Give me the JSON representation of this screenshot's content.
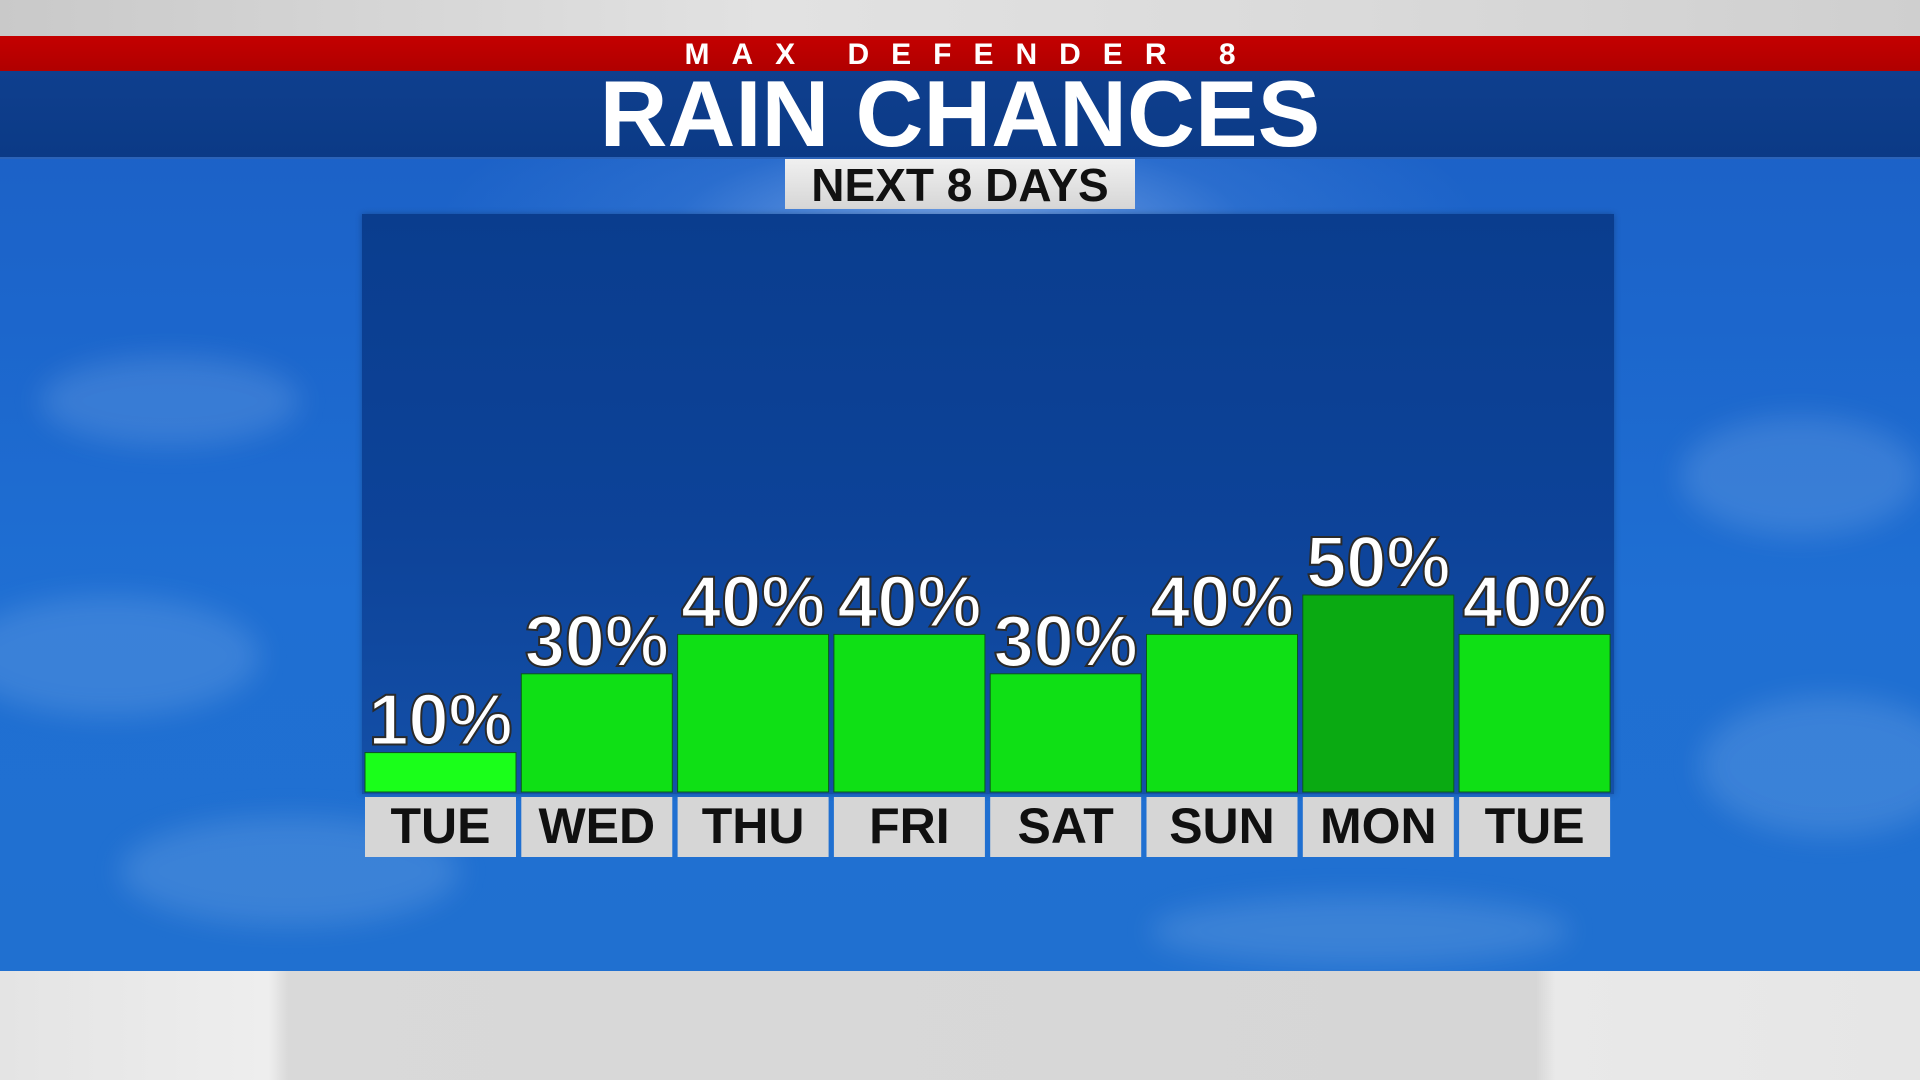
{
  "header": {
    "brand": "MAX DEFENDER 8",
    "title": "RAIN CHANCES",
    "subtitle": "NEXT 8 DAYS"
  },
  "chart_data": {
    "type": "bar",
    "categories": [
      "TUE",
      "WED",
      "THU",
      "FRI",
      "SAT",
      "SUN",
      "MON",
      "TUE"
    ],
    "values": [
      10,
      30,
      40,
      40,
      30,
      40,
      50,
      40
    ],
    "value_labels": [
      "10%",
      "30%",
      "40%",
      "40%",
      "30%",
      "40%",
      "50%",
      "40%"
    ],
    "unit": "%",
    "ylim": [
      0,
      100
    ],
    "grid": false,
    "legend": "none",
    "colors": {
      "bar_low": "#1aff1a",
      "bar": "#0fe015",
      "bar_high": "#0aaa12",
      "category_box": "#d6d6d6"
    }
  }
}
